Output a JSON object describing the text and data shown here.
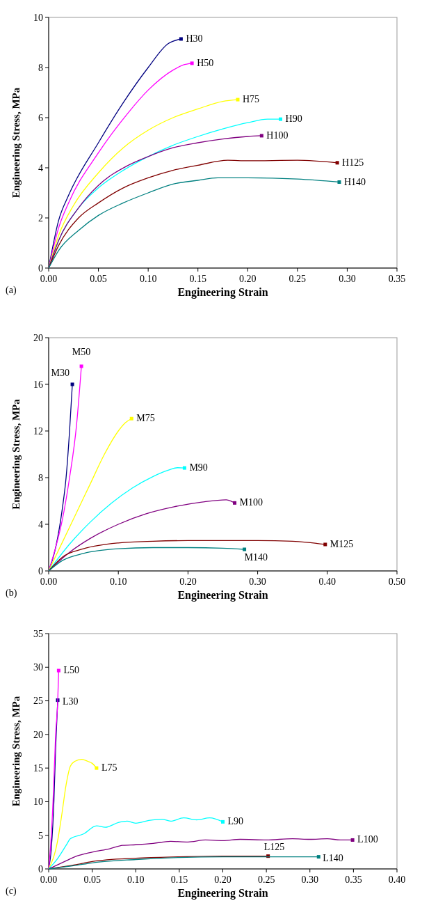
{
  "chart_data": [
    {
      "type": "line",
      "xlabel": "Engineering Strain",
      "ylabel": "Engineering Stress, MPa",
      "annotations": [
        "(a)"
      ],
      "xlim": [
        0,
        0.35
      ],
      "ylim": [
        0,
        10
      ],
      "xticks": [
        {
          "value": 0,
          "label": "0.00"
        },
        {
          "value": 0.05,
          "label": "0.05"
        },
        {
          "value": 0.1,
          "label": "0.10"
        },
        {
          "value": 0.15,
          "label": "0.15"
        },
        {
          "value": 0.2,
          "label": "0.20"
        },
        {
          "value": 0.25,
          "label": "0.25"
        },
        {
          "value": 0.3,
          "label": "0.30"
        },
        {
          "value": 0.35,
          "label": "0.35"
        }
      ],
      "yticks": [
        0,
        2,
        4,
        6,
        8,
        10
      ],
      "series": [
        {
          "name": "H30",
          "color": "#000080",
          "x": [
            0,
            0.01,
            0.02,
            0.05,
            0.075,
            0.1,
            0.12,
            0.133
          ],
          "values": [
            0,
            1.9,
            2.9,
            5.0,
            6.6,
            8.0,
            8.95,
            9.14
          ]
        },
        {
          "name": "H50",
          "color": "#ff00ff",
          "x": [
            0,
            0.01,
            0.02,
            0.05,
            0.08,
            0.1,
            0.125,
            0.135,
            0.144
          ],
          "values": [
            0,
            1.6,
            2.6,
            4.6,
            6.2,
            7.1,
            7.9,
            8.1,
            8.17
          ]
        },
        {
          "name": "H75",
          "color": "#ffff00",
          "x": [
            0,
            0.01,
            0.025,
            0.05,
            0.075,
            0.1,
            0.125,
            0.15,
            0.175,
            0.19
          ],
          "values": [
            0,
            1.3,
            2.5,
            3.8,
            4.8,
            5.5,
            6.0,
            6.35,
            6.65,
            6.72
          ]
        },
        {
          "name": "H90",
          "color": "#00ffff",
          "x": [
            0,
            0.01,
            0.03,
            0.05,
            0.075,
            0.1,
            0.125,
            0.15,
            0.175,
            0.2,
            0.22,
            0.233
          ],
          "values": [
            0,
            1.1,
            2.4,
            3.2,
            3.9,
            4.45,
            4.9,
            5.25,
            5.55,
            5.8,
            5.94,
            5.94
          ]
        },
        {
          "name": "H100",
          "color": "#800080",
          "x": [
            0,
            0.01,
            0.03,
            0.05,
            0.08,
            0.1,
            0.125,
            0.15,
            0.175,
            0.2,
            0.214
          ],
          "values": [
            0,
            1.1,
            2.4,
            3.3,
            4.1,
            4.45,
            4.8,
            5.0,
            5.15,
            5.25,
            5.28
          ]
        },
        {
          "name": "H125",
          "color": "#800000",
          "x": [
            0,
            0.01,
            0.03,
            0.05,
            0.075,
            0.1,
            0.125,
            0.15,
            0.18,
            0.2,
            0.25,
            0.29
          ],
          "values": [
            0,
            0.9,
            2.0,
            2.6,
            3.2,
            3.6,
            3.9,
            4.1,
            4.3,
            4.28,
            4.3,
            4.2
          ]
        },
        {
          "name": "H140",
          "color": "#008080",
          "x": [
            0,
            0.01,
            0.03,
            0.05,
            0.075,
            0.1,
            0.125,
            0.15,
            0.17,
            0.2,
            0.25,
            0.292
          ],
          "values": [
            0,
            0.7,
            1.5,
            2.1,
            2.6,
            3.0,
            3.35,
            3.5,
            3.6,
            3.6,
            3.55,
            3.43
          ]
        }
      ]
    },
    {
      "type": "line",
      "xlabel": "Engineering Strain",
      "ylabel": "Engineering Stress, MPa",
      "annotations": [
        "(b)"
      ],
      "xlim": [
        0,
        0.5
      ],
      "ylim": [
        0,
        20
      ],
      "xticks": [
        {
          "value": 0,
          "label": "0.00"
        },
        {
          "value": 0.1,
          "label": "0.10"
        },
        {
          "value": 0.2,
          "label": "0.20"
        },
        {
          "value": 0.3,
          "label": "0.30"
        },
        {
          "value": 0.4,
          "label": "0.40"
        },
        {
          "value": 0.5,
          "label": "0.50"
        }
      ],
      "yticks": [
        0,
        4,
        8,
        12,
        16,
        20
      ],
      "series": [
        {
          "name": "M30",
          "color": "#000080",
          "x": [
            0,
            0.01,
            0.02,
            0.025,
            0.03,
            0.034
          ],
          "values": [
            0,
            2,
            5.5,
            8,
            12,
            16.0
          ]
        },
        {
          "name": "M50",
          "color": "#ff00ff",
          "x": [
            0,
            0.01,
            0.02,
            0.03,
            0.04,
            0.047
          ],
          "values": [
            0,
            2,
            4.5,
            8,
            12.5,
            17.55
          ]
        },
        {
          "name": "M75",
          "color": "#ffff00",
          "x": [
            0,
            0.02,
            0.04,
            0.06,
            0.08,
            0.1,
            0.11,
            0.119
          ],
          "values": [
            0,
            2.5,
            5,
            7.5,
            10,
            12,
            12.7,
            13.06
          ]
        },
        {
          "name": "M90",
          "color": "#00ffff",
          "x": [
            0,
            0.03,
            0.06,
            0.09,
            0.12,
            0.15,
            0.17,
            0.185,
            0.195
          ],
          "values": [
            0,
            2.3,
            4.2,
            5.8,
            7.1,
            8.1,
            8.6,
            8.85,
            8.83
          ]
        },
        {
          "name": "M100",
          "color": "#800080",
          "x": [
            0,
            0.03,
            0.06,
            0.1,
            0.14,
            0.18,
            0.22,
            0.255,
            0.262,
            0.267
          ],
          "values": [
            0,
            1.6,
            2.8,
            4.0,
            4.9,
            5.5,
            5.9,
            6.1,
            5.98,
            5.83
          ]
        },
        {
          "name": "M125",
          "color": "#800000",
          "x": [
            0,
            0.02,
            0.05,
            0.1,
            0.15,
            0.2,
            0.3,
            0.35,
            0.397
          ],
          "values": [
            0,
            1.2,
            1.9,
            2.4,
            2.55,
            2.6,
            2.6,
            2.55,
            2.27
          ]
        },
        {
          "name": "M140",
          "color": "#008080",
          "x": [
            0,
            0.02,
            0.05,
            0.1,
            0.15,
            0.2,
            0.25,
            0.281
          ],
          "values": [
            0,
            0.9,
            1.5,
            1.9,
            2.0,
            2.0,
            1.95,
            1.85
          ]
        }
      ]
    },
    {
      "type": "line",
      "xlabel": "Engineering Strain",
      "ylabel": "Engineering Stress, MPa",
      "annotations": [
        "(c)"
      ],
      "xlim": [
        0,
        0.4
      ],
      "ylim": [
        0,
        35
      ],
      "xticks": [
        {
          "value": 0,
          "label": "0.00"
        },
        {
          "value": 0.05,
          "label": "0.05"
        },
        {
          "value": 0.1,
          "label": "0.10"
        },
        {
          "value": 0.15,
          "label": "0.15"
        },
        {
          "value": 0.2,
          "label": "0.20"
        },
        {
          "value": 0.25,
          "label": "0.25"
        },
        {
          "value": 0.3,
          "label": "0.30"
        },
        {
          "value": 0.35,
          "label": "0.35"
        },
        {
          "value": 0.4,
          "label": "0.40"
        }
      ],
      "yticks": [
        0,
        5,
        10,
        15,
        20,
        25,
        30,
        35
      ],
      "series": [
        {
          "name": "L30",
          "color": "#000080",
          "x": [
            0,
            0.003,
            0.006,
            0.008,
            0.0104
          ],
          "values": [
            0,
            3,
            10,
            18,
            25.1
          ]
        },
        {
          "name": "L50",
          "color": "#ff00ff",
          "x": [
            0,
            0.002,
            0.005,
            0.008,
            0.0104,
            0.0115
          ],
          "values": [
            0,
            3,
            10,
            20,
            25,
            29.5
          ]
        },
        {
          "name": "L75",
          "color": "#ffff00",
          "x": [
            0,
            0.01,
            0.015,
            0.02,
            0.025,
            0.03,
            0.038,
            0.045,
            0.05,
            0.055
          ],
          "values": [
            0,
            4,
            8,
            12.5,
            15.3,
            16,
            16.3,
            16,
            15.7,
            15.0
          ]
        },
        {
          "name": "L90",
          "color": "#00ffff",
          "x": [
            0,
            0.01,
            0.02,
            0.025,
            0.04,
            0.055,
            0.065,
            0.08,
            0.09,
            0.1,
            0.115,
            0.13,
            0.14,
            0.155,
            0.17,
            0.185,
            0.2
          ],
          "values": [
            0,
            1.5,
            3.5,
            4.5,
            5.2,
            6.4,
            6.2,
            6.9,
            7.1,
            6.8,
            7.2,
            7.4,
            7.1,
            7.6,
            7.3,
            7.6,
            7.0
          ]
        },
        {
          "name": "L100",
          "color": "#800080",
          "x": [
            0,
            0.02,
            0.03,
            0.05,
            0.07,
            0.085,
            0.1,
            0.12,
            0.14,
            0.16,
            0.18,
            0.2,
            0.22,
            0.25,
            0.28,
            0.3,
            0.32,
            0.335,
            0.349
          ],
          "values": [
            0,
            1.2,
            1.8,
            2.5,
            3.0,
            3.5,
            3.6,
            3.8,
            4.1,
            4.0,
            4.3,
            4.2,
            4.4,
            4.3,
            4.5,
            4.4,
            4.5,
            4.3,
            4.3
          ]
        },
        {
          "name": "L125",
          "color": "#800000",
          "x": [
            0,
            0.03,
            0.05,
            0.1,
            0.15,
            0.2,
            0.252
          ],
          "values": [
            0,
            0.6,
            1.1,
            1.6,
            1.8,
            1.9,
            1.9
          ]
        },
        {
          "name": "L140",
          "color": "#008080",
          "x": [
            0,
            0.03,
            0.05,
            0.1,
            0.15,
            0.2,
            0.31
          ],
          "values": [
            0,
            0.5,
            0.9,
            1.4,
            1.7,
            1.8,
            1.8
          ]
        }
      ]
    }
  ]
}
